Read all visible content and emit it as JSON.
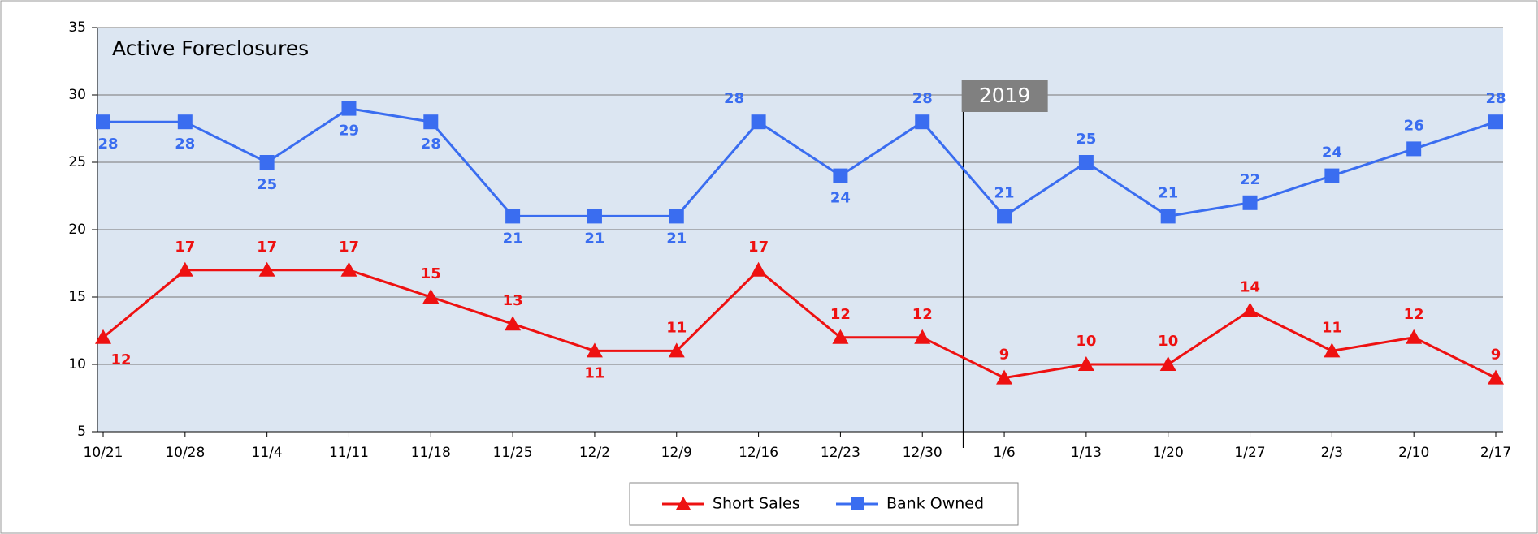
{
  "chart_data": {
    "type": "line",
    "title": "Active Foreclosures",
    "categories": [
      "10/21",
      "10/28",
      "11/4",
      "11/11",
      "11/18",
      "11/25",
      "12/2",
      "12/9",
      "12/16",
      "12/23",
      "12/30",
      "1/6",
      "1/13",
      "1/20",
      "1/27",
      "2/3",
      "2/10",
      "2/17"
    ],
    "series": [
      {
        "name": "Short Sales",
        "color": "#ee1111",
        "marker": "triangle",
        "values": [
          12,
          17,
          17,
          17,
          15,
          13,
          11,
          11,
          17,
          12,
          12,
          9,
          10,
          10,
          14,
          11,
          12,
          9
        ]
      },
      {
        "name": "Bank Owned",
        "color": "#3a6df0",
        "marker": "square",
        "values": [
          28,
          28,
          25,
          29,
          28,
          21,
          21,
          21,
          28,
          24,
          28,
          21,
          25,
          21,
          22,
          24,
          26,
          28
        ]
      }
    ],
    "ylim": [
      5,
      35
    ],
    "yticks": [
      5,
      10,
      15,
      20,
      25,
      30,
      35
    ],
    "grid": true,
    "annotation": "2019",
    "legend": "bottom"
  }
}
